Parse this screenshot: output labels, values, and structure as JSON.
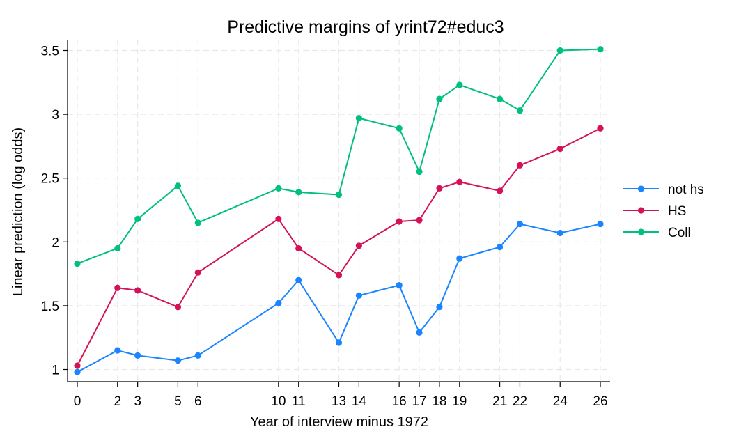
{
  "chart_data": {
    "type": "line",
    "title": "Predictive margins of yrint72#educ3",
    "xlabel": "Year of interview minus 1972",
    "ylabel": "Linear prediction (log odds)",
    "xlim": [
      0,
      26
    ],
    "ylim": [
      0.9,
      3.6
    ],
    "x_ticks": [
      0,
      2,
      3,
      5,
      6,
      10,
      11,
      13,
      14,
      16,
      17,
      18,
      19,
      21,
      22,
      24,
      26
    ],
    "y_ticks": [
      1,
      1.5,
      2,
      2.5,
      3,
      3.5
    ],
    "y_tick_labels": [
      "1",
      "1.5",
      "2",
      "2.5",
      "3",
      "3.5"
    ],
    "grid": true,
    "legend_position": "right",
    "x": [
      0,
      2,
      3,
      5,
      6,
      10,
      11,
      13,
      14,
      16,
      17,
      18,
      19,
      21,
      22,
      24,
      26
    ],
    "series": [
      {
        "name": "not hs",
        "color": "#1a85ff",
        "values": [
          0.98,
          1.15,
          1.11,
          1.07,
          1.11,
          1.52,
          1.7,
          1.21,
          1.58,
          1.66,
          1.29,
          1.49,
          1.87,
          1.96,
          2.14,
          2.07,
          2.14
        ]
      },
      {
        "name": "HS",
        "color": "#d41159",
        "values": [
          1.03,
          1.64,
          1.62,
          1.49,
          1.76,
          2.18,
          1.95,
          1.74,
          1.97,
          2.16,
          2.17,
          2.42,
          2.47,
          2.4,
          2.6,
          2.73,
          2.89
        ]
      },
      {
        "name": "Coll",
        "color": "#00bf7f",
        "values": [
          1.83,
          1.95,
          2.18,
          2.44,
          2.15,
          2.42,
          2.39,
          2.37,
          2.97,
          2.89,
          2.55,
          3.12,
          3.23,
          3.12,
          3.03,
          3.5,
          3.51
        ]
      }
    ]
  }
}
